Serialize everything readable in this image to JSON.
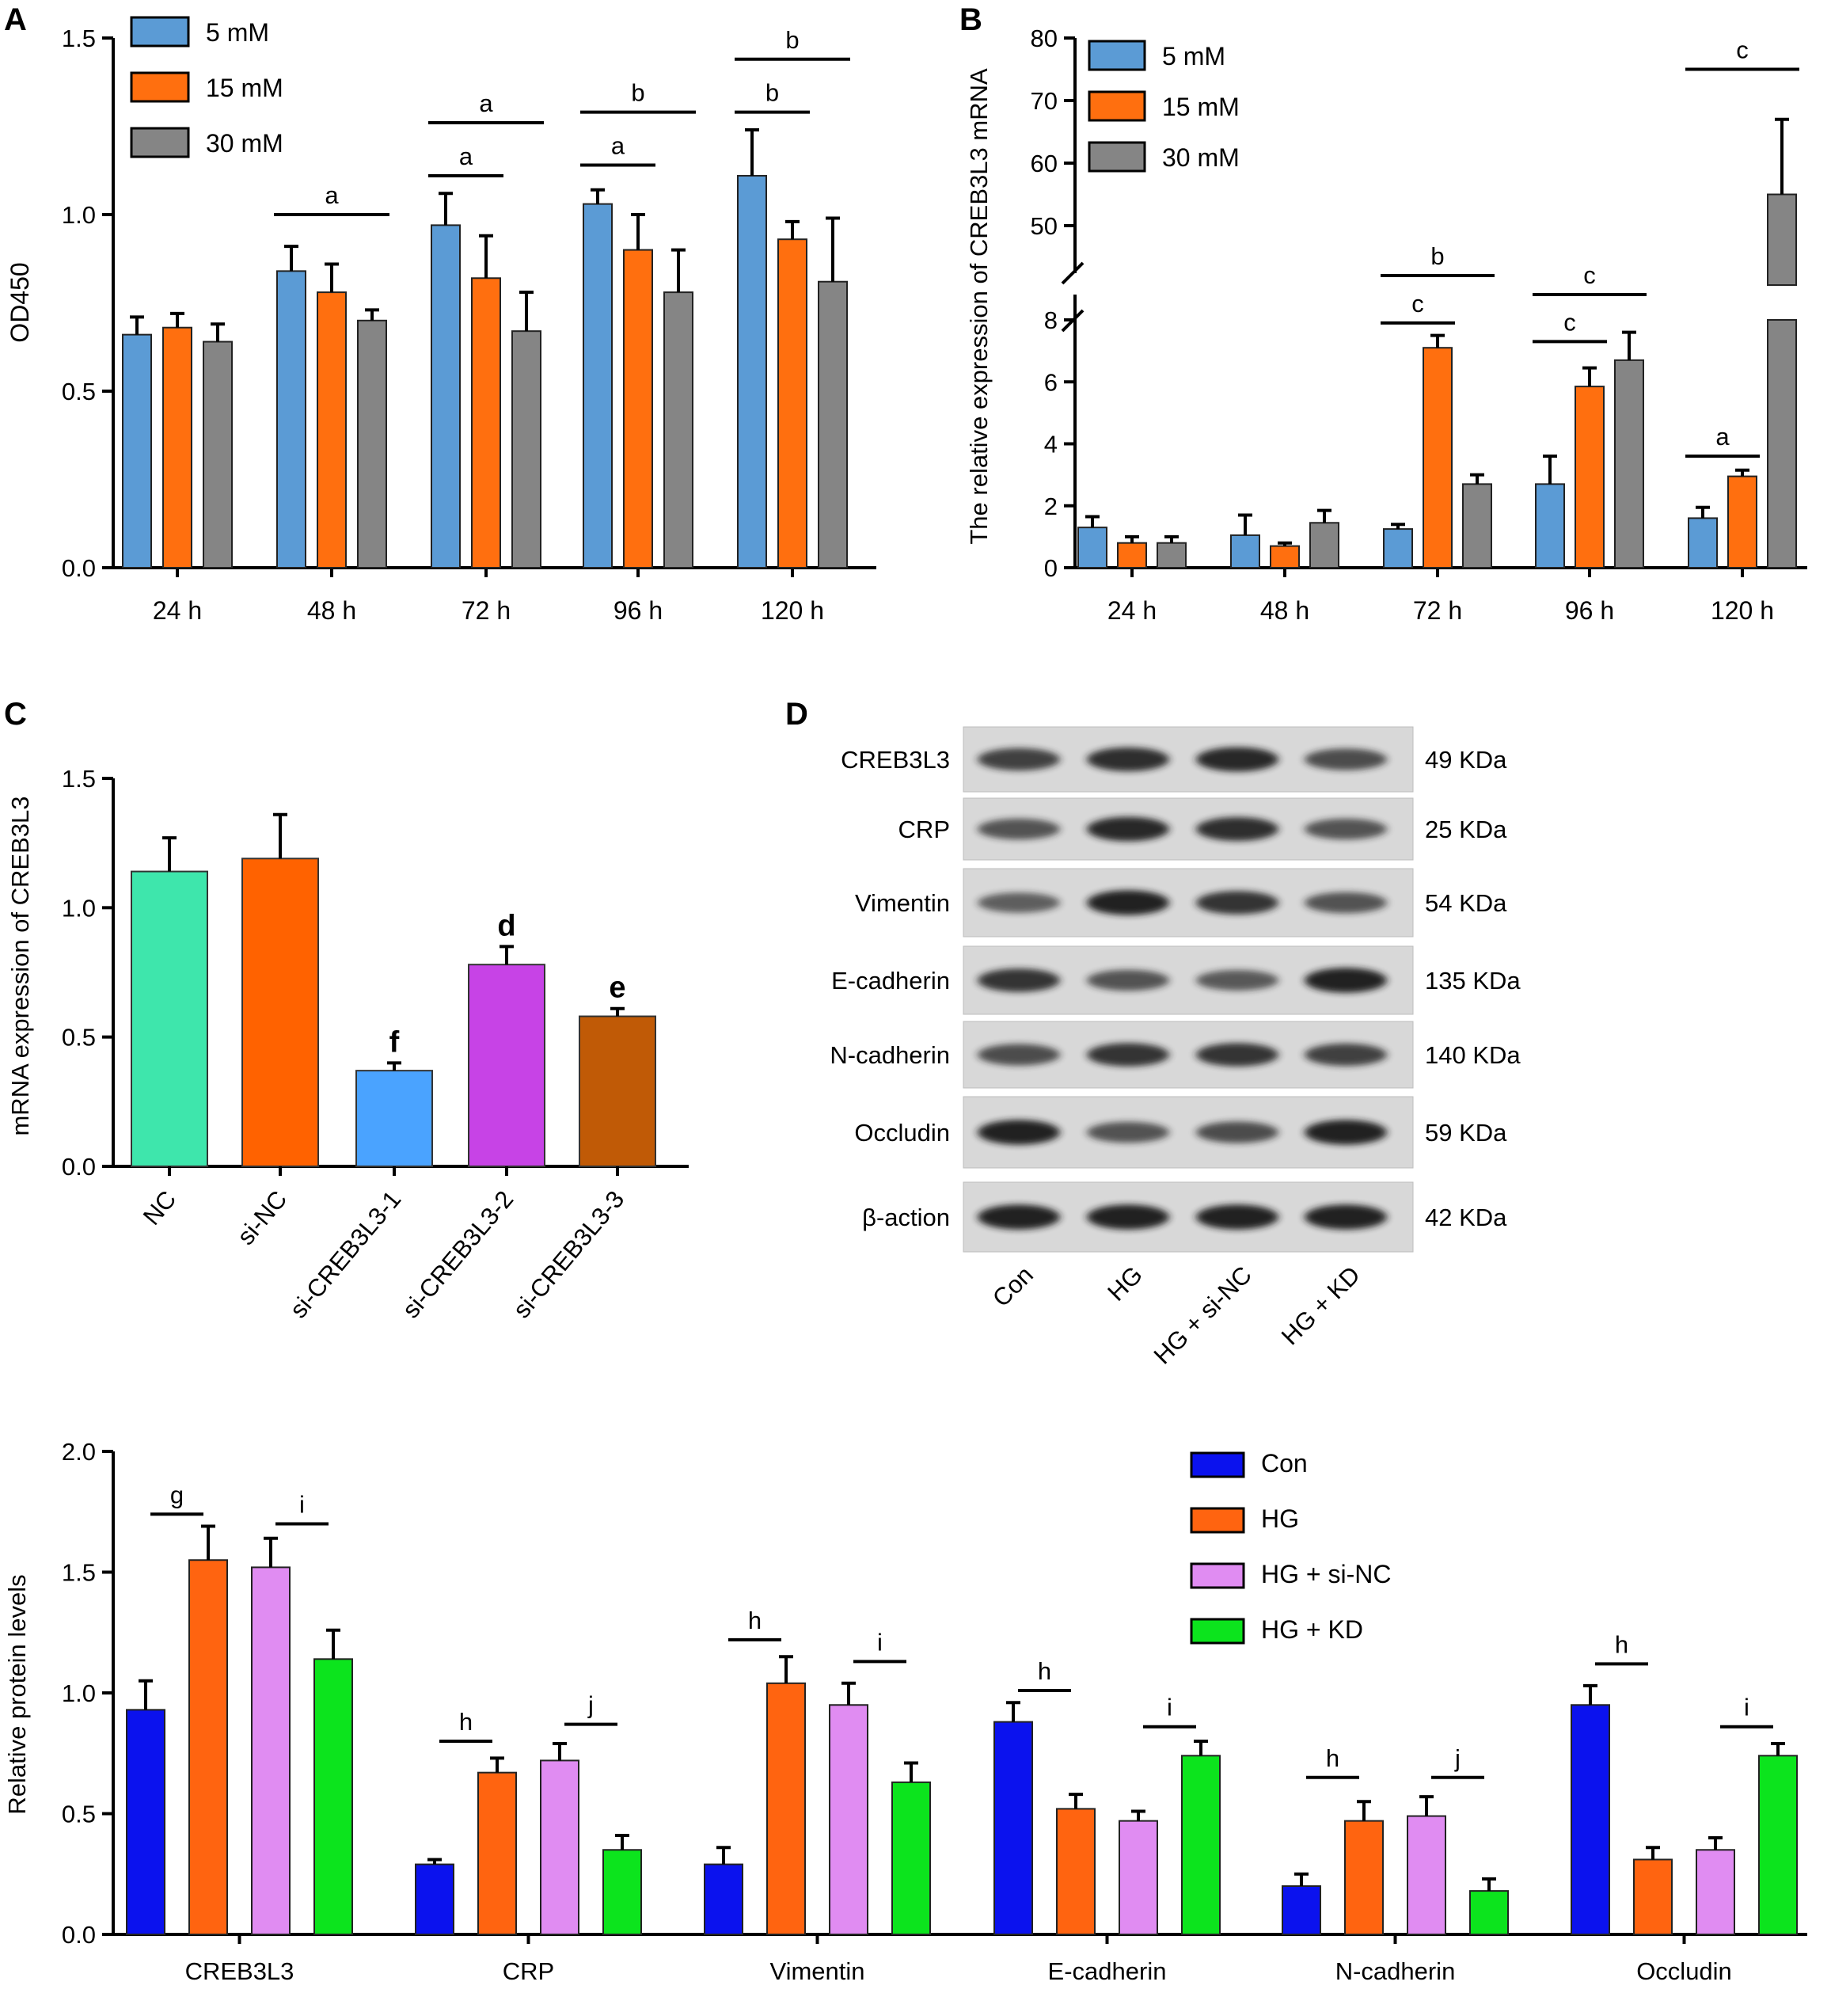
{
  "colors": {
    "mM5": "#5b9bd5",
    "mM15": "#ff6f0f",
    "mM30": "#858585",
    "NC": "#3ee6ac",
    "siNC": "#ff6200",
    "si1": "#4aa3ff",
    "si2": "#c743e6",
    "si3": "#c05a06",
    "Con": "#0b12ee",
    "HG": "#ff6410",
    "HGsiNC": "#e08cf2",
    "HGKD": "#0ce41d",
    "axis": "#000000",
    "blot_bg": "#d8d8d8",
    "band": "#1e1e1e"
  },
  "panel_labels": {
    "A": "A",
    "B": "B",
    "C": "C",
    "D": "D"
  },
  "chart_data": [
    {
      "id": "A",
      "type": "bar",
      "ylabel": "OD450",
      "ylim": [
        0,
        1.5
      ],
      "yticks": [
        "0.0",
        "0.5",
        "1.0",
        "1.5"
      ],
      "categories": [
        "24 h",
        "48 h",
        "72 h",
        "96 h",
        "120 h"
      ],
      "legend": {
        "position": "top-left",
        "entries": [
          "5 mM",
          "15 mM",
          "30 mM"
        ]
      },
      "series": [
        {
          "name": "5 mM",
          "color_key": "mM5",
          "values": [
            0.66,
            0.84,
            0.97,
            1.03,
            1.11
          ],
          "errors": [
            0.05,
            0.07,
            0.09,
            0.04,
            0.13
          ]
        },
        {
          "name": "15 mM",
          "color_key": "mM15",
          "values": [
            0.68,
            0.78,
            0.82,
            0.9,
            0.93
          ],
          "errors": [
            0.04,
            0.08,
            0.12,
            0.1,
            0.05
          ]
        },
        {
          "name": "30 mM",
          "color_key": "mM30",
          "values": [
            0.64,
            0.7,
            0.67,
            0.78,
            0.81
          ],
          "errors": [
            0.05,
            0.03,
            0.11,
            0.12,
            0.18
          ]
        }
      ],
      "annotations": [
        {
          "group": 1,
          "from": 0,
          "to": 2,
          "level": 1.0,
          "label": "a"
        },
        {
          "group": 2,
          "from": 0,
          "to": 1,
          "level": 1.11,
          "label": "a"
        },
        {
          "group": 2,
          "from": 0,
          "to": 2,
          "level": 1.26,
          "label": "a"
        },
        {
          "group": 3,
          "from": 0,
          "to": 1,
          "level": 1.14,
          "label": "a"
        },
        {
          "group": 3,
          "from": 0,
          "to": 2,
          "level": 1.29,
          "label": "b"
        },
        {
          "group": 4,
          "from": 0,
          "to": 1,
          "level": 1.29,
          "label": "b"
        },
        {
          "group": 4,
          "from": 0,
          "to": 2,
          "level": 1.44,
          "label": "b"
        }
      ]
    },
    {
      "id": "B",
      "type": "bar",
      "ylabel": "The relative expression of CREB3L3 mRNA",
      "broken_axis": true,
      "ylim_lower": [
        0,
        8
      ],
      "ylim_upper": [
        50,
        80
      ],
      "yticks_lower": [
        "0",
        "2",
        "4",
        "6",
        "8"
      ],
      "yticks_upper": [
        "50",
        "60",
        "70",
        "80"
      ],
      "categories": [
        "24 h",
        "48 h",
        "72 h",
        "96 h",
        "120 h"
      ],
      "legend": {
        "position": "top-left",
        "entries": [
          "5 mM",
          "15 mM",
          "30 mM"
        ]
      },
      "series": [
        {
          "name": "5 mM",
          "color_key": "mM5",
          "values": [
            1.3,
            1.05,
            1.25,
            2.7,
            1.6
          ],
          "errors": [
            0.35,
            0.65,
            0.15,
            0.9,
            0.35
          ]
        },
        {
          "name": "15 mM",
          "color_key": "mM15",
          "values": [
            0.8,
            0.7,
            7.1,
            5.85,
            2.95
          ],
          "errors": [
            0.2,
            0.1,
            0.4,
            0.6,
            0.2
          ]
        },
        {
          "name": "30 mM",
          "color_key": "mM30",
          "values": [
            0.8,
            1.45,
            2.7,
            6.7,
            55
          ],
          "errors": [
            0.2,
            0.4,
            0.3,
            0.9,
            12
          ]
        }
      ],
      "annotations": [
        {
          "group": 2,
          "from": 0,
          "to": 1,
          "level": 7.9,
          "label": "c"
        },
        {
          "group": 2,
          "from": 0,
          "to": 2,
          "level": 9.4,
          "label": "b"
        },
        {
          "group": 3,
          "from": 0,
          "to": 1,
          "level": 7.3,
          "label": "c"
        },
        {
          "group": 3,
          "from": 0,
          "to": 2,
          "level": 8.8,
          "label": "c"
        },
        {
          "group": 4,
          "from": 0,
          "to": 1,
          "level": 3.6,
          "label": "a"
        },
        {
          "group": 4,
          "from": 0,
          "to": 2,
          "level": 75,
          "label": "c"
        }
      ]
    },
    {
      "id": "C",
      "type": "bar",
      "ylabel": "mRNA expression of CREB3L3",
      "ylim": [
        0,
        1.5
      ],
      "yticks": [
        "0.0",
        "0.5",
        "1.0",
        "1.5"
      ],
      "categories": [
        "NC",
        "si-NC",
        "si-CREB3L3-1",
        "si-CREB3L3-2",
        "si-CREB3L3-3"
      ],
      "values": [
        1.14,
        1.19,
        0.37,
        0.78,
        0.58
      ],
      "errors": [
        0.13,
        0.17,
        0.03,
        0.07,
        0.03
      ],
      "color_keys": [
        "NC",
        "siNC",
        "si1",
        "si2",
        "si3"
      ],
      "bar_labels": [
        "",
        "",
        "f",
        "d",
        "e"
      ]
    },
    {
      "id": "D",
      "type": "bar",
      "ylabel": "Relative protein levels",
      "ylim": [
        0,
        2.0
      ],
      "yticks": [
        "0.0",
        "0.5",
        "1.0",
        "1.5",
        "2.0"
      ],
      "categories": [
        "CREB3L3",
        "CRP",
        "Vimentin",
        "E-cadherin",
        "N-cadherin",
        "Occludin"
      ],
      "legend": {
        "position": "top-right",
        "entries": [
          "Con",
          "HG",
          "HG + si-NC",
          "HG + KD"
        ]
      },
      "series": [
        {
          "name": "Con",
          "color_key": "Con",
          "values": [
            0.93,
            0.29,
            0.29,
            0.88,
            0.2,
            0.95
          ],
          "errors": [
            0.12,
            0.02,
            0.07,
            0.08,
            0.05,
            0.08
          ]
        },
        {
          "name": "HG",
          "color_key": "HG",
          "values": [
            1.55,
            0.67,
            1.04,
            0.52,
            0.47,
            0.31
          ],
          "errors": [
            0.14,
            0.06,
            0.11,
            0.06,
            0.08,
            0.05
          ]
        },
        {
          "name": "HG + si-NC",
          "color_key": "HGsiNC",
          "values": [
            1.52,
            0.72,
            0.95,
            0.47,
            0.49,
            0.35
          ],
          "errors": [
            0.12,
            0.07,
            0.09,
            0.04,
            0.08,
            0.05
          ]
        },
        {
          "name": "HG + KD",
          "color_key": "HGKD",
          "values": [
            1.14,
            0.35,
            0.63,
            0.74,
            0.18,
            0.74
          ],
          "errors": [
            0.12,
            0.06,
            0.08,
            0.06,
            0.05,
            0.05
          ]
        }
      ],
      "annotations": [
        {
          "group": 0,
          "from": 0,
          "to": 1,
          "level": 1.74,
          "label": "g"
        },
        {
          "group": 0,
          "from": 2,
          "to": 3,
          "level": 1.7,
          "label": "i"
        },
        {
          "group": 1,
          "from": 0,
          "to": 1,
          "level": 0.8,
          "label": "h"
        },
        {
          "group": 1,
          "from": 2,
          "to": 3,
          "level": 0.87,
          "label": "j"
        },
        {
          "group": 2,
          "from": 0,
          "to": 1,
          "level": 1.22,
          "label": "h"
        },
        {
          "group": 2,
          "from": 2,
          "to": 3,
          "level": 1.13,
          "label": "i"
        },
        {
          "group": 3,
          "from": 0,
          "to": 1,
          "level": 1.01,
          "label": "h"
        },
        {
          "group": 3,
          "from": 2,
          "to": 3,
          "level": 0.86,
          "label": "i"
        },
        {
          "group": 4,
          "from": 0,
          "to": 1,
          "level": 0.65,
          "label": "h"
        },
        {
          "group": 4,
          "from": 2,
          "to": 3,
          "level": 0.65,
          "label": "j"
        },
        {
          "group": 5,
          "from": 0,
          "to": 1,
          "level": 1.12,
          "label": "h"
        },
        {
          "group": 5,
          "from": 2,
          "to": 3,
          "level": 0.86,
          "label": "i"
        }
      ]
    }
  ],
  "western_blot": {
    "rows": [
      {
        "protein": "CREB3L3",
        "size": "49 KDa",
        "intensity": [
          0.7,
          0.85,
          0.9,
          0.6
        ]
      },
      {
        "protein": "CRP",
        "size": "25 KDa",
        "intensity": [
          0.55,
          0.9,
          0.85,
          0.55
        ]
      },
      {
        "protein": "Vimentin",
        "size": "54 KDa",
        "intensity": [
          0.45,
          0.95,
          0.8,
          0.55
        ]
      },
      {
        "protein": "E-cadherin",
        "size": "135 KDa",
        "intensity": [
          0.8,
          0.55,
          0.5,
          0.95
        ]
      },
      {
        "protein": "N-cadherin",
        "size": "140 KDa",
        "intensity": [
          0.6,
          0.8,
          0.8,
          0.7
        ]
      },
      {
        "protein": "Occludin",
        "size": "59 KDa",
        "intensity": [
          0.95,
          0.55,
          0.6,
          0.95
        ]
      },
      {
        "protein": "β-action",
        "size": "42 KDa",
        "intensity": [
          0.95,
          0.95,
          0.95,
          0.95
        ]
      }
    ],
    "lanes": [
      "Con",
      "HG",
      "HG + si-NC",
      "HG + KD"
    ]
  }
}
